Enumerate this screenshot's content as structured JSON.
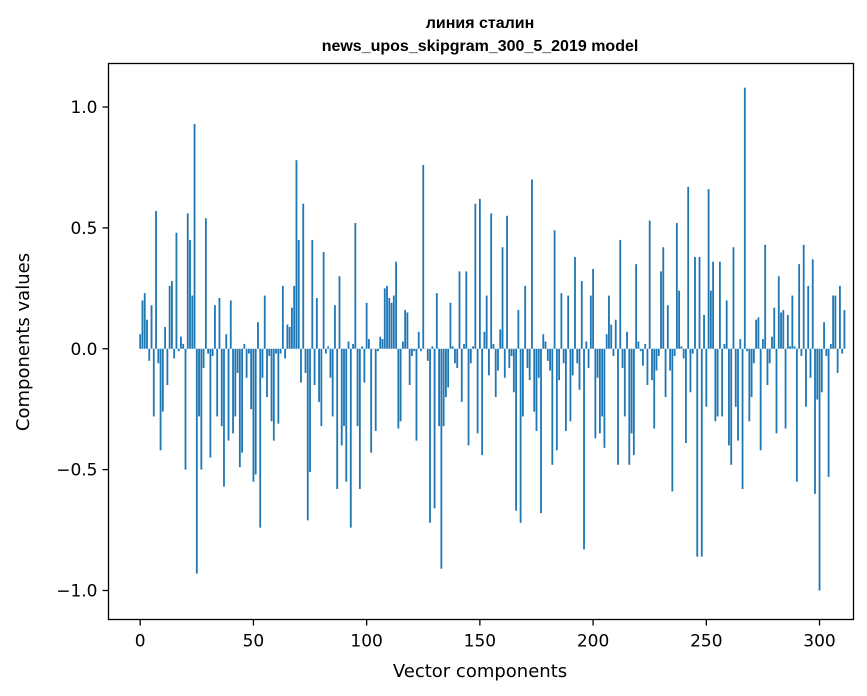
{
  "chart_data": {
    "type": "bar",
    "title": "линия сталин",
    "subtitle": "news_upos_skipgram_300_5_2019 model",
    "xlabel": "Vector components",
    "ylabel": "Components values",
    "xlim": [
      -14,
      315
    ],
    "ylim": [
      -1.12,
      1.18
    ],
    "xticks": [
      0,
      50,
      100,
      150,
      200,
      250,
      300
    ],
    "xtick_labels": [
      "0",
      "50",
      "100",
      "150",
      "200",
      "250",
      "300"
    ],
    "yticks": [
      -1.0,
      -0.5,
      0.0,
      0.5,
      1.0
    ],
    "ytick_labels": [
      "−1.0",
      "−0.5",
      "0.0",
      "0.5",
      "1.0"
    ],
    "grid": false,
    "bar_color": "#1f77b4",
    "values": [
      0.06,
      0.2,
      0.23,
      0.12,
      -0.05,
      0.18,
      -0.28,
      0.57,
      -0.06,
      -0.42,
      -0.26,
      0.09,
      -0.15,
      0.26,
      0.28,
      -0.04,
      0.48,
      -0.01,
      0.05,
      0.02,
      -0.5,
      0.56,
      0.45,
      0.22,
      0.93,
      -0.93,
      -0.28,
      -0.5,
      -0.08,
      0.54,
      -0.02,
      -0.45,
      -0.03,
      0.18,
      -0.28,
      0.21,
      -0.32,
      -0.57,
      0.06,
      -0.38,
      0.2,
      -0.35,
      -0.28,
      -0.1,
      -0.49,
      -0.43,
      0.02,
      -0.12,
      -0.02,
      -0.25,
      -0.55,
      -0.52,
      0.11,
      -0.74,
      -0.12,
      0.22,
      -0.2,
      -0.03,
      -0.3,
      -0.38,
      -0.02,
      -0.31,
      -0.02,
      0.26,
      -0.04,
      0.1,
      0.09,
      0.17,
      0.26,
      0.78,
      0.45,
      -0.14,
      0.6,
      -0.1,
      -0.71,
      -0.51,
      0.45,
      -0.15,
      0.21,
      -0.22,
      -0.32,
      0.4,
      -0.02,
      0.01,
      -0.12,
      -0.28,
      0.18,
      -0.58,
      0.3,
      -0.4,
      -0.32,
      -0.55,
      0.03,
      -0.74,
      0.02,
      0.52,
      -0.32,
      -0.58,
      0.01,
      -0.14,
      0.19,
      0.04,
      -0.43,
      0.0,
      -0.34,
      -0.01,
      0.05,
      0.04,
      0.25,
      0.26,
      0.21,
      0.19,
      0.22,
      0.36,
      -0.33,
      -0.3,
      0.03,
      0.16,
      0.15,
      -0.15,
      -0.03,
      -0.01,
      -0.38,
      0.07,
      -0.01,
      0.76,
      0.0,
      -0.05,
      -0.72,
      0.01,
      -0.66,
      0.23,
      -0.32,
      -0.91,
      -0.32,
      -0.2,
      -0.16,
      0.19,
      0.01,
      -0.06,
      -0.08,
      0.32,
      -0.22,
      0.02,
      0.32,
      -0.4,
      -0.06,
      0.01,
      0.6,
      -0.35,
      0.62,
      -0.44,
      0.07,
      0.22,
      -0.11,
      0.56,
      0.02,
      -0.2,
      -0.09,
      0.08,
      0.42,
      -0.12,
      0.55,
      -0.08,
      -0.03,
      -0.18,
      -0.67,
      0.16,
      -0.72,
      -0.28,
      0.26,
      -0.08,
      -0.13,
      0.7,
      -0.26,
      -0.34,
      -0.12,
      -0.68,
      0.06,
      0.03,
      -0.05,
      -0.09,
      -0.48,
      0.49,
      -0.42,
      -0.13,
      0.23,
      -0.06,
      -0.34,
      0.22,
      -0.3,
      -0.11,
      0.38,
      -0.06,
      -0.17,
      0.28,
      -0.83,
      0.03,
      -0.08,
      0.22,
      0.33,
      -0.37,
      -0.12,
      -0.35,
      -0.28,
      -0.41,
      0.06,
      0.22,
      0.1,
      -0.03,
      0.12,
      -0.48,
      0.45,
      -0.08,
      -0.28,
      0.07,
      -0.48,
      -0.35,
      -0.44,
      0.35,
      0.03,
      -0.01,
      -0.07,
      0.02,
      -0.15,
      0.53,
      -0.13,
      -0.33,
      -0.09,
      -0.03,
      0.32,
      0.42,
      -0.2,
      0.18,
      -0.09,
      -0.59,
      -0.03,
      0.52,
      0.24,
      0.01,
      -0.04,
      -0.39,
      0.67,
      -0.18,
      -0.02,
      0.38,
      -0.86,
      0.38,
      -0.86,
      0.14,
      -0.24,
      0.66,
      0.24,
      0.36,
      -0.3,
      -0.28,
      0.36,
      -0.28,
      0.02,
      0.2,
      -0.4,
      -0.48,
      0.42,
      -0.24,
      -0.38,
      0.04,
      -0.58,
      1.08,
      -0.01,
      -0.3,
      -0.2,
      -0.06,
      0.12,
      0.13,
      -0.42,
      0.04,
      0.43,
      -0.15,
      -0.06,
      0.05,
      0.17,
      -0.35,
      0.3,
      0.15,
      0.16,
      -0.33,
      0.14,
      0.01,
      0.22,
      0.01,
      -0.55,
      0.35,
      -0.03,
      0.43,
      -0.24,
      0.26,
      -0.12,
      0.37,
      -0.6,
      -0.21,
      -1.0,
      -0.18,
      0.11,
      -0.03,
      -0.53,
      0.02,
      0.22,
      0.22,
      -0.1,
      0.26,
      -0.02,
      0.16
    ]
  }
}
